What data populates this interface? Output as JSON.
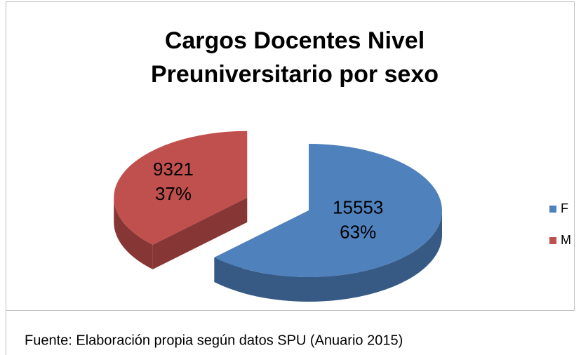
{
  "chart_data": {
    "type": "pie",
    "title": [
      "Cargos Docentes Nivel",
      "Preuniversitario por sexo"
    ],
    "categories": [
      "F",
      "M"
    ],
    "values": [
      15553,
      9321
    ],
    "percent_labels": [
      "63%",
      "37%"
    ],
    "colors": [
      "#4f81bd",
      "#c0504d"
    ],
    "legend": "right",
    "source": "Fuente: Elaboración propia según datos SPU (Anuario 2015)"
  }
}
